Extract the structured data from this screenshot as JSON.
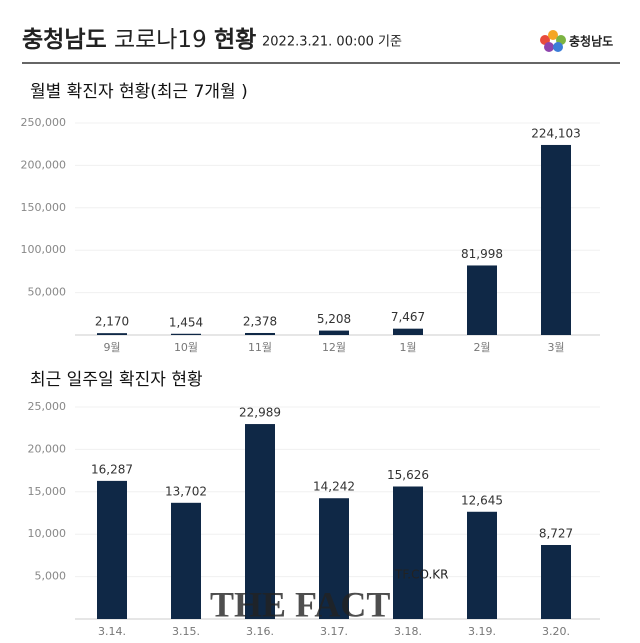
{
  "header": {
    "title_parts": [
      "충청남도",
      "코로나19",
      "현황"
    ],
    "date": "2022.3.21. 00:00 기준",
    "logo": "충청남도"
  },
  "watermark": [
    "TF.CO.KR",
    "THE FACT"
  ],
  "chart_data": [
    {
      "type": "bar",
      "title": "월별 확진자 현황(최근 7개월 )",
      "categories": [
        "9월",
        "10월",
        "11월",
        "12월",
        "1월",
        "2월",
        "3월"
      ],
      "values": [
        2170,
        1454,
        2378,
        5208,
        7467,
        81998,
        224103
      ],
      "value_labels": [
        "2,170",
        "1,454",
        "2,378",
        "5,208",
        "7,467",
        "81,998",
        "224,103"
      ],
      "color": "#0f2846",
      "ylim": [
        0,
        250000
      ],
      "yticks": [
        {
          "value": 50000,
          "label": "50,000"
        },
        {
          "value": 100000,
          "label": "100,000"
        },
        {
          "value": 150000,
          "label": "150,000"
        },
        {
          "value": 200000,
          "label": "200,000"
        },
        {
          "value": 250000,
          "label": "250,000"
        }
      ],
      "grid": true
    },
    {
      "type": "bar",
      "title": "최근 일주일 확진자 현황",
      "categories": [
        "3.14.",
        "3.15.",
        "3.16.",
        "3.17.",
        "3.18.",
        "3.19.",
        "3.20."
      ],
      "values": [
        16287,
        13702,
        22989,
        14242,
        15626,
        12645,
        8727
      ],
      "value_labels": [
        "16,287",
        "13,702",
        "22,989",
        "14,242",
        "15,626",
        "12,645",
        "8,727"
      ],
      "color": "#0f2846",
      "ylim": [
        0,
        25000
      ],
      "yticks": [
        {
          "value": 5000,
          "label": "5,000"
        },
        {
          "value": 10000,
          "label": "10,000"
        },
        {
          "value": 15000,
          "label": "15,000"
        },
        {
          "value": 20000,
          "label": "20,000"
        },
        {
          "value": 25000,
          "label": "25,000"
        }
      ],
      "grid": true
    }
  ]
}
